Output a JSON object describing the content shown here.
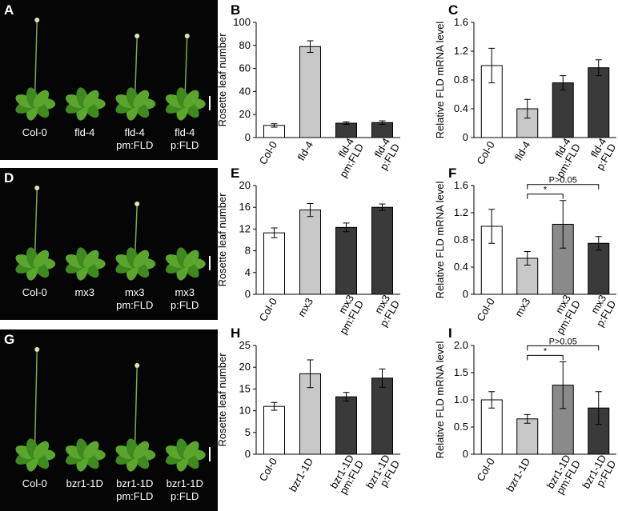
{
  "photos": [
    {
      "label": "A",
      "plants": [
        "Col-0",
        "fld-4",
        "fld-4 pm:FLD",
        "fld-4 p:FLD"
      ]
    },
    {
      "label": "D",
      "plants": [
        "Col-0",
        "mx3",
        "mx3 pm:FLD",
        "mx3 p:FLD"
      ]
    },
    {
      "label": "G",
      "plants": [
        "Col-0",
        "bzr1-1D",
        "bzr1-1D pm:FLD",
        "bzr1-1D p:FLD"
      ]
    }
  ],
  "chart_data": [
    {
      "type": "bar",
      "label": "B",
      "y_label": "Rosette leaf number",
      "categories": [
        "Col-0",
        "fld-4",
        "fld-4 pm:FLD",
        "fld-4 p:FLD"
      ],
      "values": [
        10.5,
        79,
        12.5,
        13
      ],
      "errors": [
        1.5,
        5,
        1,
        1.5
      ],
      "colors": [
        "#ffffff",
        "#c8c8c8",
        "#3a3a3a",
        "#3a3a3a"
      ],
      "ylim": [
        0,
        100
      ],
      "yticks": [
        0,
        20,
        40,
        60,
        80,
        100
      ]
    },
    {
      "type": "bar",
      "label": "C",
      "y_label": "Relative FLD mRNA level",
      "categories": [
        "Col-0",
        "fld-4",
        "fld-4 pm:FLD",
        "fld-4 p:FLD"
      ],
      "values": [
        1.0,
        0.4,
        0.76,
        0.97
      ],
      "errors": [
        0.24,
        0.13,
        0.1,
        0.11
      ],
      "colors": [
        "#ffffff",
        "#c8c8c8",
        "#3a3a3a",
        "#3a3a3a"
      ],
      "ylim": [
        0,
        1.6
      ],
      "yticks": [
        0,
        0.4,
        0.8,
        1.2,
        1.6
      ]
    },
    {
      "type": "bar",
      "label": "E",
      "y_label": "Rosette leaf number",
      "categories": [
        "Col-0",
        "mx3",
        "mx3 pm:FLD",
        "mx3 p:FLD"
      ],
      "values": [
        11.3,
        15.5,
        12.3,
        16
      ],
      "errors": [
        0.9,
        1.2,
        0.8,
        0.6
      ],
      "colors": [
        "#ffffff",
        "#c8c8c8",
        "#3a3a3a",
        "#3a3a3a"
      ],
      "ylim": [
        0,
        20
      ],
      "yticks": [
        0,
        4,
        8,
        12,
        16,
        20
      ]
    },
    {
      "type": "bar",
      "label": "F",
      "y_label": "Relative FLD mRNA level",
      "categories": [
        "Col-0",
        "mx3",
        "mx3 pm:FLD",
        "mx3 p:FLD"
      ],
      "values": [
        1.0,
        0.53,
        1.03,
        0.75
      ],
      "errors": [
        0.25,
        0.1,
        0.35,
        0.1
      ],
      "colors": [
        "#ffffff",
        "#c8c8c8",
        "#8a8a8a",
        "#3a3a3a"
      ],
      "ylim": [
        0,
        1.6
      ],
      "yticks": [
        0,
        0.4,
        0.8,
        1.2,
        1.6
      ],
      "annotations": [
        {
          "text": "*",
          "between": [
            1,
            2
          ]
        },
        {
          "text": "P>0.05",
          "between": [
            1,
            3
          ]
        }
      ]
    },
    {
      "type": "bar",
      "label": "H",
      "y_label": "Rosette leaf number",
      "categories": [
        "Col-0",
        "bzr1-1D",
        "bzr1-1D pm:FLD",
        "bzr1-1D p:FLD"
      ],
      "values": [
        11,
        18.5,
        13.2,
        17.5
      ],
      "errors": [
        0.9,
        3.2,
        1.0,
        2.1
      ],
      "colors": [
        "#ffffff",
        "#c8c8c8",
        "#3a3a3a",
        "#3a3a3a"
      ],
      "ylim": [
        0,
        25
      ],
      "yticks": [
        0,
        5,
        10,
        15,
        20,
        25
      ]
    },
    {
      "type": "bar",
      "label": "I",
      "y_label": "Relative FLD mRNA level",
      "categories": [
        "Col-0",
        "bzr1-1D",
        "bzr1-1D pm:FLD",
        "bzr1-1D p:FLD"
      ],
      "values": [
        1.0,
        0.65,
        1.27,
        0.85
      ],
      "errors": [
        0.15,
        0.08,
        0.43,
        0.3
      ],
      "colors": [
        "#ffffff",
        "#c8c8c8",
        "#8a8a8a",
        "#3a3a3a"
      ],
      "ylim": [
        0,
        2.0
      ],
      "yticks": [
        0,
        0.5,
        {
          "value": 1,
          "label": "1.0"
        },
        1.5,
        {
          "value": 2,
          "label": "2.0"
        }
      ],
      "annotations": [
        {
          "text": "*",
          "between": [
            1,
            2
          ]
        },
        {
          "text": "P>0.05",
          "between": [
            1,
            3
          ]
        }
      ]
    }
  ]
}
